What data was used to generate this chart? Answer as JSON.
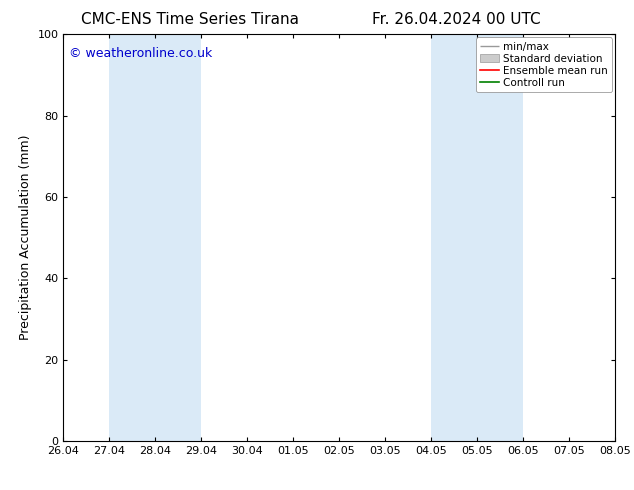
{
  "title_left": "CMC-ENS Time Series Tirana",
  "title_right": "Fr. 26.04.2024 00 UTC",
  "ylabel": "Precipitation Accumulation (mm)",
  "ylim": [
    0,
    100
  ],
  "yticks": [
    0,
    20,
    40,
    60,
    80,
    100
  ],
  "x_labels": [
    "26.04",
    "27.04",
    "28.04",
    "29.04",
    "30.04",
    "01.05",
    "02.05",
    "03.05",
    "04.05",
    "05.05",
    "06.05",
    "07.05",
    "08.05"
  ],
  "x_values": [
    0,
    1,
    2,
    3,
    4,
    5,
    6,
    7,
    8,
    9,
    10,
    11,
    12
  ],
  "shaded_regions": [
    {
      "xmin": 1,
      "xmax": 3,
      "color": "#daeaf7"
    },
    {
      "xmin": 8,
      "xmax": 10,
      "color": "#daeaf7"
    }
  ],
  "legend_entries": [
    {
      "label": "min/max",
      "color": "#aaaaaa",
      "type": "line_with_caps"
    },
    {
      "label": "Standard deviation",
      "color": "#cccccc",
      "type": "fill"
    },
    {
      "label": "Ensemble mean run",
      "color": "#ff0000",
      "type": "line"
    },
    {
      "label": "Controll run",
      "color": "#008000",
      "type": "line"
    }
  ],
  "watermark_text": "© weatheronline.co.uk",
  "watermark_color": "#0000cc",
  "watermark_fontsize": 9,
  "bg_color": "#ffffff",
  "title_fontsize": 11,
  "tick_fontsize": 8,
  "ylabel_fontsize": 9,
  "legend_fontsize": 7.5
}
